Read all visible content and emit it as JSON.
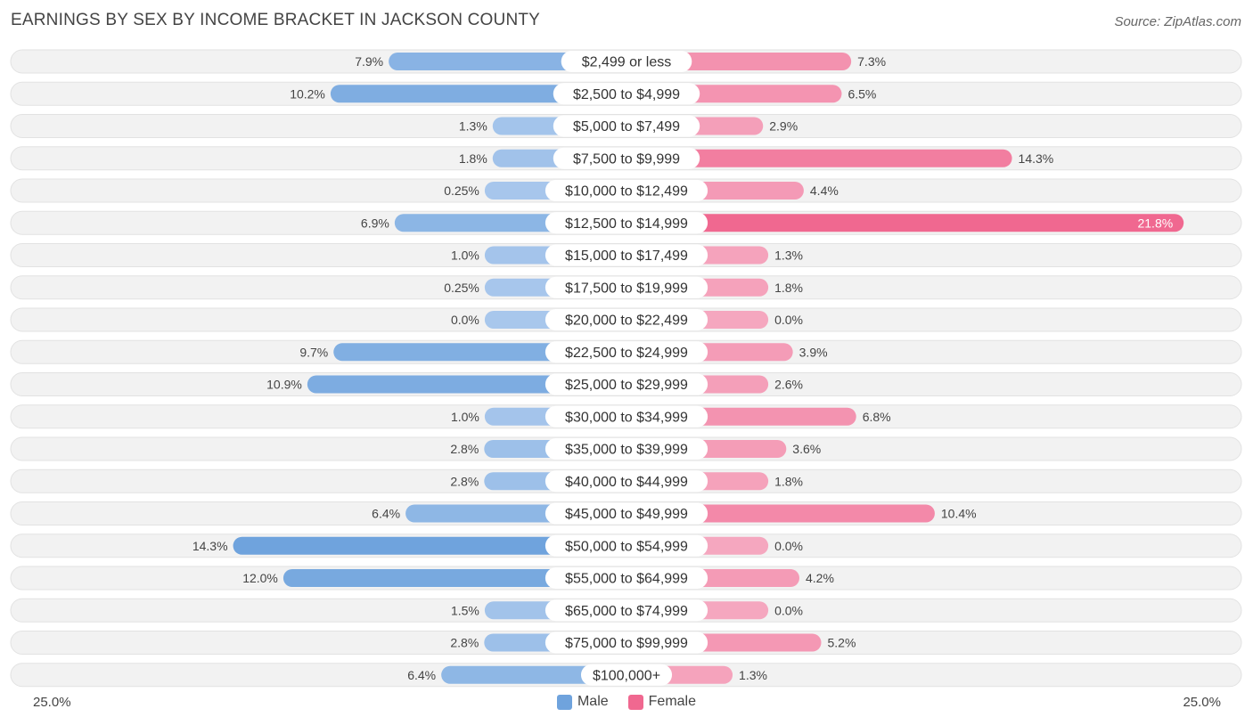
{
  "header": {
    "title": "EARNINGS BY SEX BY INCOME BRACKET IN JACKSON COUNTY",
    "source": "Source: ZipAtlas.com"
  },
  "colors": {
    "male": "#6fa3dd",
    "male_light": "#a8c7ec",
    "female": "#f06890",
    "female_light": "#f5a7bf",
    "row_bg": "#f2f2f2",
    "row_border": "#e2e2e2"
  },
  "chart_data": {
    "type": "bar",
    "orientation": "horizontal-diverging",
    "title": "EARNINGS BY SEX BY INCOME BRACKET IN JACKSON COUNTY",
    "categories": [
      "$2,499 or less",
      "$2,500 to $4,999",
      "$5,000 to $7,499",
      "$7,500 to $9,999",
      "$10,000 to $12,499",
      "$12,500 to $14,999",
      "$15,000 to $17,499",
      "$17,500 to $19,999",
      "$20,000 to $22,499",
      "$22,500 to $24,999",
      "$25,000 to $29,999",
      "$30,000 to $34,999",
      "$35,000 to $39,999",
      "$40,000 to $44,999",
      "$45,000 to $49,999",
      "$50,000 to $54,999",
      "$55,000 to $64,999",
      "$65,000 to $74,999",
      "$75,000 to $99,999",
      "$100,000+"
    ],
    "series": [
      {
        "name": "Male",
        "values": [
          7.9,
          10.2,
          1.3,
          1.8,
          0.25,
          6.9,
          1.0,
          0.25,
          0.0,
          9.7,
          10.9,
          1.0,
          2.8,
          2.8,
          6.4,
          14.3,
          12.0,
          1.5,
          2.8,
          6.4
        ],
        "labels": [
          "7.9%",
          "10.2%",
          "1.3%",
          "1.8%",
          "0.25%",
          "6.9%",
          "1.0%",
          "0.25%",
          "0.0%",
          "9.7%",
          "10.9%",
          "1.0%",
          "2.8%",
          "2.8%",
          "6.4%",
          "14.3%",
          "12.0%",
          "1.5%",
          "2.8%",
          "6.4%"
        ]
      },
      {
        "name": "Female",
        "values": [
          7.3,
          6.5,
          2.9,
          14.3,
          4.4,
          21.8,
          1.3,
          1.8,
          0.0,
          3.9,
          2.6,
          6.8,
          3.6,
          1.8,
          10.4,
          0.0,
          4.2,
          0.0,
          5.2,
          1.3
        ],
        "labels": [
          "7.3%",
          "6.5%",
          "2.9%",
          "14.3%",
          "4.4%",
          "21.8%",
          "1.3%",
          "1.8%",
          "0.0%",
          "3.9%",
          "2.6%",
          "6.8%",
          "3.6%",
          "1.8%",
          "10.4%",
          "0.0%",
          "4.2%",
          "0.0%",
          "5.2%",
          "1.3%"
        ]
      }
    ],
    "xlim": [
      -25,
      25
    ],
    "axis_min_label": "25.0%",
    "axis_max_label": "25.0%",
    "legend": [
      "Male",
      "Female"
    ],
    "legend_position": "bottom-center"
  }
}
